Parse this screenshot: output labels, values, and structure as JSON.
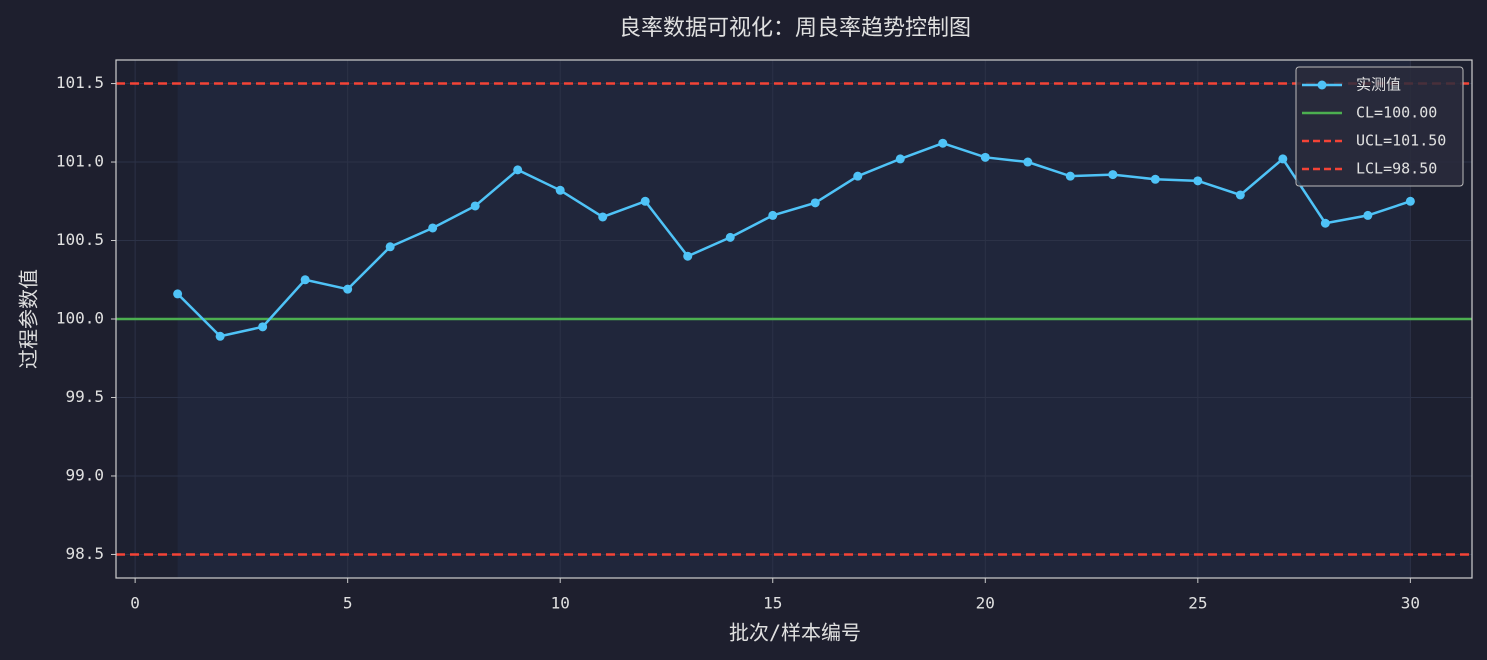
{
  "chart_data": {
    "type": "line",
    "title": "良率数据可视化：周良率趋势控制图",
    "x_label": "批次/样本编号",
    "y_label": "过程参数值",
    "x": [
      1,
      2,
      3,
      4,
      5,
      6,
      7,
      8,
      9,
      10,
      11,
      12,
      13,
      14,
      15,
      16,
      17,
      18,
      19,
      20,
      21,
      22,
      23,
      24,
      25,
      26,
      27,
      28,
      29,
      30
    ],
    "series": [
      {
        "name": "实测值",
        "color": "#4fc3f7",
        "values": [
          100.16,
          99.89,
          99.95,
          100.25,
          100.19,
          100.46,
          100.58,
          100.72,
          100.95,
          100.82,
          100.65,
          100.75,
          100.4,
          100.52,
          100.66,
          100.74,
          100.91,
          101.02,
          101.12,
          101.03,
          101.0,
          100.91,
          100.92,
          100.89,
          100.88,
          100.79,
          101.02,
          100.61,
          100.66,
          100.75
        ]
      }
    ],
    "control_lines": [
      {
        "name": "CL=100.00",
        "value": 100,
        "color": "#4caf50",
        "style": "solid"
      },
      {
        "name": "UCL=101.50",
        "value": 101.5,
        "color": "#f44336",
        "style": "dashed"
      },
      {
        "name": "LCL=98.50",
        "value": 98.5,
        "color": "#f44336",
        "style": "dashed"
      }
    ],
    "xlim": [
      -0.45,
      31.45
    ],
    "ylim": [
      98.35,
      101.65
    ],
    "xticks": [
      0,
      5,
      10,
      15,
      20,
      25,
      30
    ],
    "yticks": [
      98.5,
      {
        "value": 99,
        "label": "99.0"
      },
      99.5,
      {
        "value": 100,
        "label": "100.0"
      },
      100.5,
      {
        "value": 101,
        "label": "101.0"
      },
      101.5
    ],
    "grid": true,
    "legend": "upper right"
  }
}
